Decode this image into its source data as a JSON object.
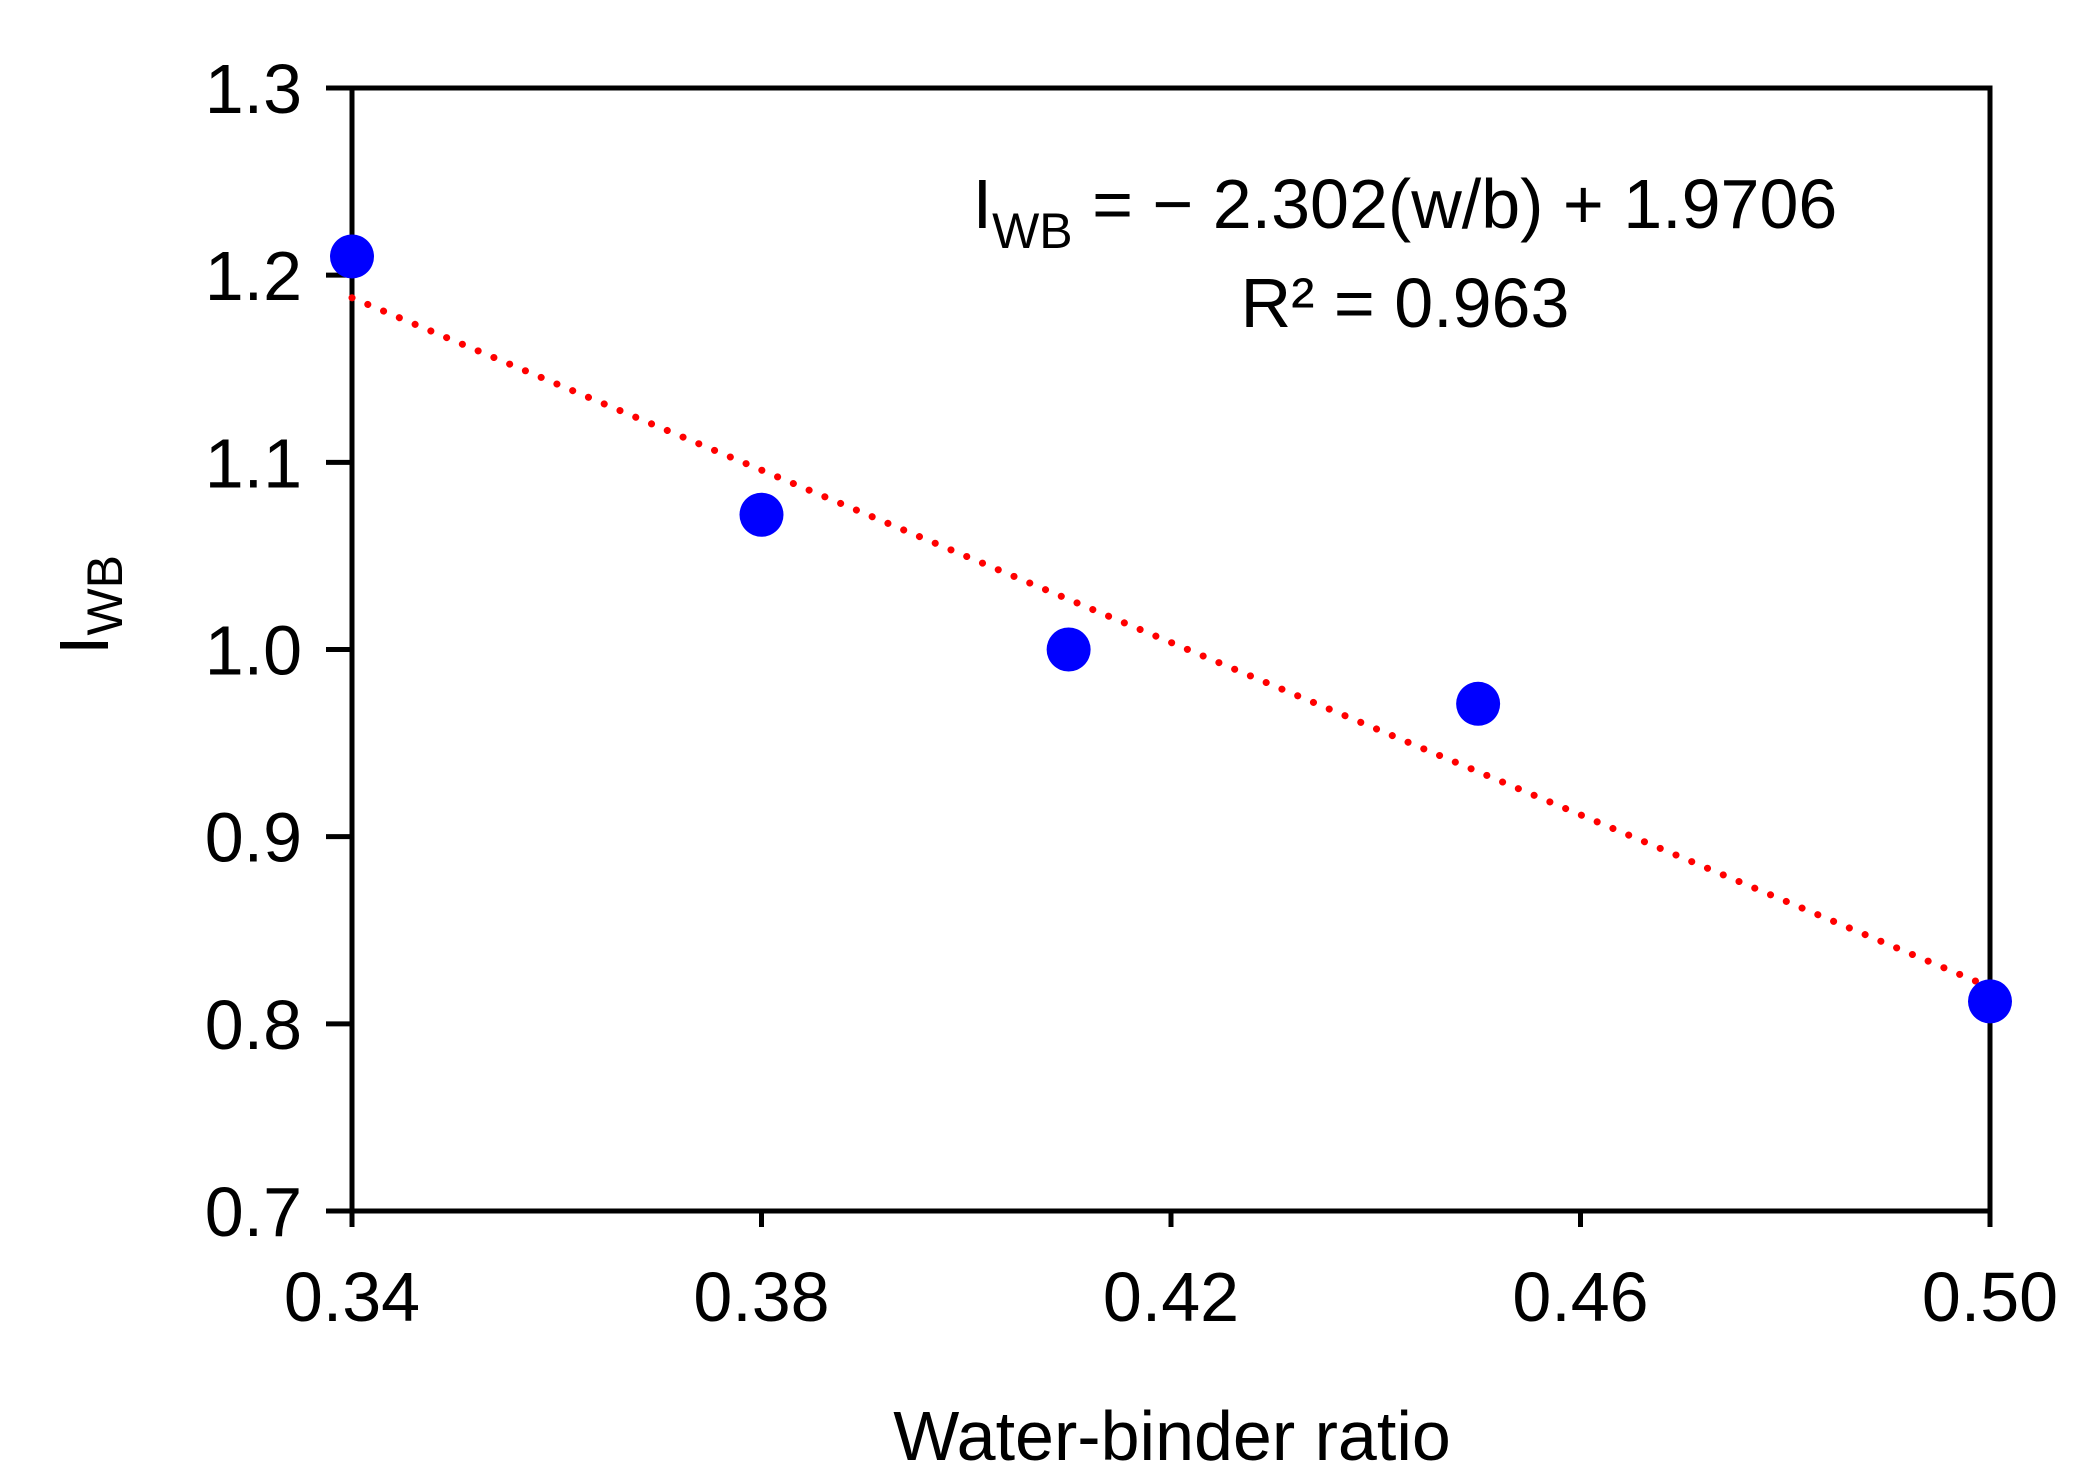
{
  "chart_data": {
    "type": "scatter",
    "title": "",
    "xlabel": "Water-binder ratio",
    "ylabel": {
      "main": "I",
      "sub": "WB"
    },
    "xlim": [
      0.34,
      0.5
    ],
    "ylim": [
      0.7,
      1.3
    ],
    "xticks": [
      {
        "value": 0.34,
        "label": "0.34"
      },
      {
        "value": 0.38,
        "label": "0.38"
      },
      {
        "value": 0.42,
        "label": "0.42"
      },
      {
        "value": 0.46,
        "label": "0.46"
      },
      {
        "value": 0.5,
        "label": "0.50"
      }
    ],
    "yticks": [
      {
        "value": 0.7,
        "label": "0.7"
      },
      {
        "value": 0.8,
        "label": "0.8"
      },
      {
        "value": 0.9,
        "label": "0.9"
      },
      {
        "value": 1.0,
        "label": "1.0"
      },
      {
        "value": 1.1,
        "label": "1.1"
      },
      {
        "value": 1.2,
        "label": "1.2"
      },
      {
        "value": 1.3,
        "label": "1.3"
      }
    ],
    "grid": false,
    "series": [
      {
        "name": "I_WB data",
        "color": "#0000ff",
        "x": [
          0.34,
          0.38,
          0.41,
          0.45,
          0.5
        ],
        "y": [
          1.21,
          1.072,
          1.0,
          0.971,
          0.812
        ]
      }
    ],
    "trendline": {
      "type": "linear",
      "slope": -2.302,
      "intercept": 1.9706,
      "color": "#ff0000",
      "style": "dotted",
      "x_range": [
        0.34,
        0.5
      ]
    },
    "annotations": {
      "equation": {
        "lhs_main": "I",
        "lhs_sub": "WB",
        "rhs": " = − 2.302(w/b) + 1.9706"
      },
      "r_squared": "R² = 0.963"
    }
  }
}
